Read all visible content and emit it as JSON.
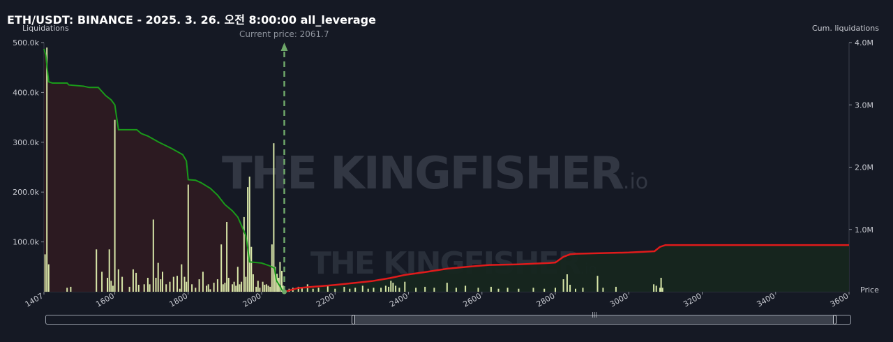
{
  "header": {
    "title": "ETH/USDT: BINANCE - 2025. 3. 26. 오전 8:00:00 all_leverage",
    "left_axis_label": "Liquidations",
    "right_axis_label": "Cum. liquidations",
    "x_axis_label": "Price",
    "current_price_text": "Current price: 2061.7"
  },
  "watermark": {
    "brand": "THE KINGFISHER",
    "suffix": ".io"
  },
  "colors": {
    "long_cum_line": "#1a9a1a",
    "long_area": "#2d1a22",
    "short_cum_line": "#e01b1b",
    "short_area": "#16261f",
    "bars": "#d8e6a8",
    "current_price": "#6fa86a"
  },
  "chart_data": {
    "type": "bar",
    "current_price": 2061.7,
    "x_range": [
      1407,
      3600
    ],
    "x_ticks": [
      1407,
      1600,
      1800,
      2000,
      2200,
      2400,
      2600,
      2800,
      3000,
      3200,
      3400,
      3600
    ],
    "left_axis": {
      "label": "Liquidations",
      "range": [
        0,
        500000
      ],
      "ticks": [
        100000,
        200000,
        300000,
        400000,
        500000
      ],
      "tick_labels": [
        "100.0k",
        "200.0k",
        "300.0k",
        "400.0k",
        "500.0k"
      ]
    },
    "right_axis": {
      "label": "Cum. liquidations",
      "range": [
        0,
        4000000
      ],
      "ticks": [
        1000000,
        2000000,
        3000000,
        4000000
      ],
      "tick_labels": [
        "1.0M",
        "2.0M",
        "3.0M",
        "4.0M"
      ]
    },
    "bars": [
      [
        1410,
        75000
      ],
      [
        1415,
        490000
      ],
      [
        1420,
        55000
      ],
      [
        1470,
        8000
      ],
      [
        1480,
        10000
      ],
      [
        1550,
        85000
      ],
      [
        1565,
        40000
      ],
      [
        1580,
        28000
      ],
      [
        1585,
        85000
      ],
      [
        1590,
        22000
      ],
      [
        1595,
        12000
      ],
      [
        1600,
        345000
      ],
      [
        1610,
        45000
      ],
      [
        1620,
        30000
      ],
      [
        1640,
        10000
      ],
      [
        1650,
        45000
      ],
      [
        1658,
        38000
      ],
      [
        1665,
        14000
      ],
      [
        1680,
        15000
      ],
      [
        1690,
        28000
      ],
      [
        1695,
        15000
      ],
      [
        1705,
        145000
      ],
      [
        1712,
        28000
      ],
      [
        1718,
        58000
      ],
      [
        1725,
        25000
      ],
      [
        1730,
        40000
      ],
      [
        1740,
        15000
      ],
      [
        1750,
        20000
      ],
      [
        1760,
        30000
      ],
      [
        1770,
        32000
      ],
      [
        1777,
        6000
      ],
      [
        1782,
        55000
      ],
      [
        1790,
        30000
      ],
      [
        1795,
        20000
      ],
      [
        1800,
        215000
      ],
      [
        1810,
        15000
      ],
      [
        1820,
        8000
      ],
      [
        1830,
        25000
      ],
      [
        1840,
        40000
      ],
      [
        1850,
        12000
      ],
      [
        1855,
        15000
      ],
      [
        1860,
        5000
      ],
      [
        1870,
        18000
      ],
      [
        1880,
        25000
      ],
      [
        1890,
        95000
      ],
      [
        1895,
        15000
      ],
      [
        1900,
        18000
      ],
      [
        1905,
        140000
      ],
      [
        1910,
        28000
      ],
      [
        1920,
        15000
      ],
      [
        1925,
        20000
      ],
      [
        1930,
        12000
      ],
      [
        1935,
        50000
      ],
      [
        1940,
        15000
      ],
      [
        1945,
        20000
      ],
      [
        1952,
        150000
      ],
      [
        1957,
        30000
      ],
      [
        1962,
        210000
      ],
      [
        1967,
        231000
      ],
      [
        1972,
        90000
      ],
      [
        1977,
        35000
      ],
      [
        1985,
        10000
      ],
      [
        1990,
        22000
      ],
      [
        1995,
        8000
      ],
      [
        2003,
        20000
      ],
      [
        2008,
        14000
      ],
      [
        2013,
        15000
      ],
      [
        2018,
        12000
      ],
      [
        2023,
        10000
      ],
      [
        2028,
        95000
      ],
      [
        2033,
        298000
      ],
      [
        2037,
        50000
      ],
      [
        2042,
        36000
      ],
      [
        2046,
        28000
      ],
      [
        2050,
        60000
      ],
      [
        2055,
        42000
      ],
      [
        2059,
        12000
      ],
      [
        2075,
        6000
      ],
      [
        2085,
        8000
      ],
      [
        2100,
        10000
      ],
      [
        2110,
        8000
      ],
      [
        2125,
        15000
      ],
      [
        2140,
        6000
      ],
      [
        2155,
        8000
      ],
      [
        2180,
        14000
      ],
      [
        2200,
        6000
      ],
      [
        2225,
        10000
      ],
      [
        2240,
        6000
      ],
      [
        2255,
        8000
      ],
      [
        2275,
        12000
      ],
      [
        2290,
        6000
      ],
      [
        2305,
        8000
      ],
      [
        2325,
        8000
      ],
      [
        2338,
        12000
      ],
      [
        2346,
        10000
      ],
      [
        2352,
        22000
      ],
      [
        2358,
        18000
      ],
      [
        2365,
        12000
      ],
      [
        2375,
        8000
      ],
      [
        2390,
        20000
      ],
      [
        2420,
        8000
      ],
      [
        2445,
        10000
      ],
      [
        2470,
        8000
      ],
      [
        2505,
        18000
      ],
      [
        2530,
        8000
      ],
      [
        2555,
        12000
      ],
      [
        2590,
        8000
      ],
      [
        2625,
        10000
      ],
      [
        2645,
        6000
      ],
      [
        2670,
        8000
      ],
      [
        2700,
        6000
      ],
      [
        2740,
        8000
      ],
      [
        2770,
        6000
      ],
      [
        2800,
        8000
      ],
      [
        2822,
        25000
      ],
      [
        2832,
        35000
      ],
      [
        2840,
        14000
      ],
      [
        2855,
        6000
      ],
      [
        2875,
        8000
      ],
      [
        2915,
        32000
      ],
      [
        2930,
        8000
      ],
      [
        2965,
        10000
      ],
      [
        3068,
        15000
      ],
      [
        3075,
        12000
      ],
      [
        3085,
        8000
      ],
      [
        3088,
        28000
      ],
      [
        3092,
        8000
      ]
    ],
    "long_cumulative": [
      [
        1407,
        3900000
      ],
      [
        1412,
        3800000
      ],
      [
        1420,
        3370000
      ],
      [
        1430,
        3350000
      ],
      [
        1470,
        3350000
      ],
      [
        1475,
        3320000
      ],
      [
        1515,
        3300000
      ],
      [
        1530,
        3280000
      ],
      [
        1555,
        3280000
      ],
      [
        1575,
        3150000
      ],
      [
        1590,
        3080000
      ],
      [
        1600,
        3000000
      ],
      [
        1610,
        2600000
      ],
      [
        1660,
        2600000
      ],
      [
        1672,
        2540000
      ],
      [
        1690,
        2500000
      ],
      [
        1720,
        2400000
      ],
      [
        1755,
        2300000
      ],
      [
        1785,
        2200000
      ],
      [
        1795,
        2100000
      ],
      [
        1800,
        1800000
      ],
      [
        1820,
        1790000
      ],
      [
        1835,
        1750000
      ],
      [
        1860,
        1660000
      ],
      [
        1880,
        1550000
      ],
      [
        1900,
        1400000
      ],
      [
        1920,
        1300000
      ],
      [
        1935,
        1200000
      ],
      [
        1950,
        1000000
      ],
      [
        1957,
        900000
      ],
      [
        1962,
        700000
      ],
      [
        1967,
        480000
      ],
      [
        2000,
        460000
      ],
      [
        2020,
        420000
      ],
      [
        2035,
        380000
      ],
      [
        2040,
        180000
      ],
      [
        2050,
        90000
      ],
      [
        2055,
        30000
      ],
      [
        2061.7,
        0
      ]
    ],
    "short_cumulative": [
      [
        2061.7,
        0
      ],
      [
        2075,
        20000
      ],
      [
        2100,
        60000
      ],
      [
        2140,
        80000
      ],
      [
        2200,
        110000
      ],
      [
        2250,
        140000
      ],
      [
        2300,
        170000
      ],
      [
        2350,
        220000
      ],
      [
        2390,
        270000
      ],
      [
        2440,
        310000
      ],
      [
        2505,
        370000
      ],
      [
        2560,
        400000
      ],
      [
        2620,
        430000
      ],
      [
        2700,
        440000
      ],
      [
        2780,
        460000
      ],
      [
        2800,
        470000
      ],
      [
        2822,
        560000
      ],
      [
        2840,
        600000
      ],
      [
        2855,
        610000
      ],
      [
        2920,
        620000
      ],
      [
        3000,
        630000
      ],
      [
        3070,
        650000
      ],
      [
        3085,
        720000
      ],
      [
        3100,
        750000
      ],
      [
        3600,
        750000
      ]
    ]
  }
}
